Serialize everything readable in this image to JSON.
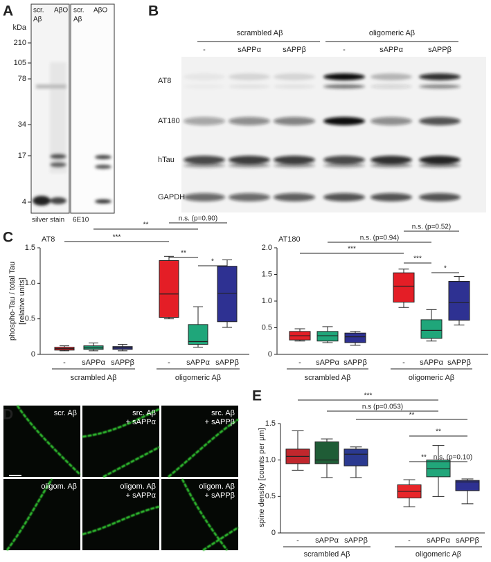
{
  "panel_labels": [
    "A",
    "B",
    "C",
    "D",
    "E"
  ],
  "panel_a": {
    "unit": "kDa",
    "markers": [
      "210",
      "105",
      "78",
      "34",
      "17",
      "4"
    ],
    "blots": [
      {
        "lanes": [
          [
            "scr.",
            "Aβ"
          ],
          [
            "AβO"
          ]
        ],
        "caption": "silver stain"
      },
      {
        "lanes": [
          [
            "scr.",
            "Aβ"
          ],
          [
            "AβO"
          ]
        ],
        "caption": "6E10"
      }
    ]
  },
  "panel_b": {
    "groups": [
      "scrambled Aβ",
      "oligomeric Aβ"
    ],
    "lanes": [
      "-",
      "sAPPα",
      "sAPPβ",
      "-",
      "sAPPα",
      "sAPPβ"
    ],
    "rows": [
      "AT8",
      "AT180",
      "hTau",
      "GAPDH"
    ]
  },
  "chart_data": [
    {
      "type": "box",
      "title": "AT8",
      "y_label": [
        "phospho-Tau / total Tau",
        "[relative units]"
      ],
      "ylim": [
        0,
        1.5
      ],
      "yticks": [
        0,
        0.5,
        {
          "value": 1,
          "label": "1.0"
        },
        1.5
      ],
      "categories": [
        "-",
        "sAPPα",
        "sAPPβ",
        "-",
        "sAPPα",
        "sAPPβ"
      ],
      "groups": [
        "scrambled Aβ",
        "oligomeric Aβ"
      ],
      "colors": [
        "#e41e26",
        "#1fa67a",
        "#2e3192",
        "#e41e26",
        "#1fa67a",
        "#2e3192"
      ],
      "boxes": [
        {
          "min": 0.05,
          "q1": 0.06,
          "median": 0.08,
          "q3": 0.1,
          "max": 0.12
        },
        {
          "min": 0.05,
          "q1": 0.07,
          "median": 0.09,
          "q3": 0.12,
          "max": 0.16
        },
        {
          "min": 0.05,
          "q1": 0.07,
          "median": 0.09,
          "q3": 0.11,
          "max": 0.14
        },
        {
          "min": 0.5,
          "q1": 0.52,
          "median": 0.85,
          "q3": 1.32,
          "max": 1.38
        },
        {
          "min": 0.1,
          "q1": 0.14,
          "median": 0.18,
          "q3": 0.42,
          "max": 0.67
        },
        {
          "min": 0.38,
          "q1": 0.46,
          "median": 0.86,
          "q3": 1.24,
          "max": 1.33
        }
      ],
      "brackets": [
        {
          "text": "***",
          "from": 0,
          "to": 3
        },
        {
          "text": "**",
          "from": 1,
          "to": 4
        },
        {
          "text": "n.s. (p=0.90)",
          "from": 3,
          "to": 5
        },
        {
          "text": "**",
          "from": 3,
          "to": 4
        },
        {
          "text": "*",
          "from": 4,
          "to": 5
        }
      ]
    },
    {
      "type": "box",
      "title": "AT180",
      "ylim": [
        0,
        2
      ],
      "yticks": [
        0,
        0.5,
        {
          "value": 1,
          "label": "1.0"
        },
        1.5,
        {
          "value": 2,
          "label": "2.0"
        }
      ],
      "categories": [
        "-",
        "sAPPα",
        "sAPPβ",
        "-",
        "sAPPα",
        "sAPPβ"
      ],
      "groups": [
        "scrambled Aβ",
        "oligomeric Aβ"
      ],
      "colors": [
        "#e41e26",
        "#1fa67a",
        "#2e3192",
        "#e41e26",
        "#1fa67a",
        "#2e3192"
      ],
      "boxes": [
        {
          "min": 0.25,
          "q1": 0.27,
          "median": 0.35,
          "q3": 0.43,
          "max": 0.48
        },
        {
          "min": 0.22,
          "q1": 0.25,
          "median": 0.35,
          "q3": 0.43,
          "max": 0.52
        },
        {
          "min": 0.17,
          "q1": 0.22,
          "median": 0.33,
          "q3": 0.4,
          "max": 0.43
        },
        {
          "min": 0.88,
          "q1": 0.98,
          "median": 1.28,
          "q3": 1.53,
          "max": 1.6
        },
        {
          "min": 0.25,
          "q1": 0.3,
          "median": 0.45,
          "q3": 0.65,
          "max": 0.84
        },
        {
          "min": 0.55,
          "q1": 0.64,
          "median": 0.97,
          "q3": 1.37,
          "max": 1.46
        }
      ],
      "brackets": [
        {
          "text": "***",
          "from": 0,
          "to": 3
        },
        {
          "text": "n.s. (p=0.94)",
          "from": 1,
          "to": 4
        },
        {
          "text": "n.s. (p=0.52)",
          "from": 3,
          "to": 5
        },
        {
          "text": "***",
          "from": 3,
          "to": 4
        },
        {
          "text": "*",
          "from": 4,
          "to": 5
        }
      ]
    },
    {
      "type": "box",
      "y_label": [
        "spine density [counts per µm]"
      ],
      "ylim": [
        0,
        1.5
      ],
      "yticks": [
        0,
        0.5,
        {
          "value": 1,
          "label": "1.0"
        },
        1.5
      ],
      "categories": [
        "-",
        "sAPPα",
        "sAPPβ",
        "-",
        "sAPPα",
        "sAPPβ"
      ],
      "groups": [
        "scrambled Aβ",
        "oligomeric Aβ"
      ],
      "colors": [
        "#c1272d",
        "#1f5c36",
        "#2b3990",
        "#e8262a",
        "#21a67a",
        "#2e3192"
      ],
      "boxes": [
        {
          "min": 0.86,
          "q1": 0.95,
          "median": 1.05,
          "q3": 1.15,
          "max": 1.4
        },
        {
          "min": 0.76,
          "q1": 0.95,
          "median": 1.0,
          "q3": 1.25,
          "max": 1.29
        },
        {
          "min": 0.76,
          "q1": 0.92,
          "median": 1.08,
          "q3": 1.15,
          "max": 1.18
        },
        {
          "min": 0.36,
          "q1": 0.48,
          "median": 0.57,
          "q3": 0.66,
          "max": 0.73
        },
        {
          "min": 0.5,
          "q1": 0.77,
          "median": 0.88,
          "q3": 1.0,
          "max": 1.2
        },
        {
          "min": 0.4,
          "q1": 0.58,
          "median": 0.7,
          "q3": 0.72,
          "max": 0.74
        }
      ],
      "brackets": [
        {
          "text": "***",
          "from": 0,
          "to": 4
        },
        {
          "text": "n.s (p=0.053)",
          "from": 1,
          "to": 4
        },
        {
          "text": "**",
          "from": 2,
          "to": 5
        },
        {
          "text": "**",
          "from": 3,
          "to": 5
        },
        {
          "text": "**",
          "from": 3,
          "to": 4
        },
        {
          "text": "n.s. (p=0.10)",
          "from": 4,
          "to": 5
        }
      ]
    }
  ],
  "panel_d": {
    "tiles": [
      [
        "scr.  Aβ"
      ],
      [
        "src. Aβ",
        "+ sAPPα"
      ],
      [
        "src. Aβ",
        "+ sAPPβ"
      ],
      [
        "oligom. Aβ"
      ],
      [
        "oligom. Aβ",
        "+ sAPPα"
      ],
      [
        "oligom. Aβ",
        "+ sAPPβ"
      ]
    ]
  }
}
